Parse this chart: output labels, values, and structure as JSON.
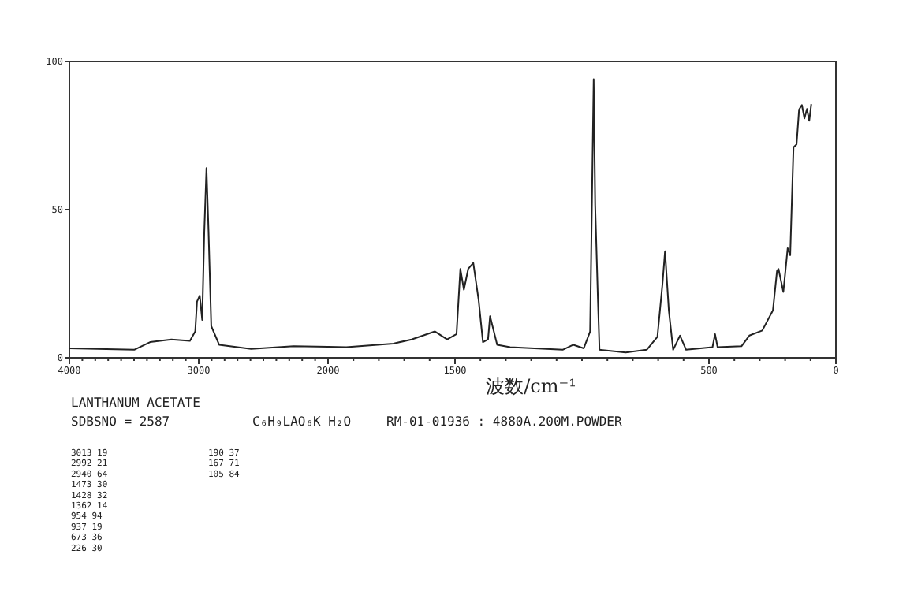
{
  "chart_data": [
    {
      "type": "line",
      "x": [
        4000,
        3499,
        3376,
        3211,
        3068,
        3027,
        3013,
        2992,
        2973,
        2957,
        2940,
        2924,
        2903,
        2842,
        2595,
        2267,
        2000
      ],
      "series": [
        {
          "color": "#222222",
          "values": [
            3.2,
            2.7,
            5.3,
            6.2,
            5.7,
            8.9,
            19,
            21,
            12.8,
            42.6,
            64,
            42.6,
            10.7,
            4.4,
            3,
            3.9,
            3.7
          ]
        }
      ],
      "xlim": [
        4000,
        2000
      ],
      "ylim": [
        0,
        100
      ],
      "yticks": [
        0,
        50,
        100
      ],
      "line_style": "solid",
      "xticks": [
        4000,
        {
          "value": 3900,
          "label": null
        },
        {
          "value": 3800,
          "label": null
        },
        {
          "value": 3700,
          "label": null
        },
        {
          "value": 3600,
          "label": null
        },
        {
          "value": 3500,
          "label": null
        },
        {
          "value": 3400,
          "label": null
        },
        {
          "value": 3300,
          "label": null
        },
        {
          "value": 3200,
          "label": null
        },
        {
          "value": 3100,
          "label": null
        },
        3000,
        {
          "value": 2900,
          "label": null
        },
        {
          "value": 2800,
          "label": null
        },
        {
          "value": 2700,
          "label": null
        },
        {
          "value": 2600,
          "label": null
        },
        {
          "value": 2500,
          "label": null
        },
        {
          "value": 2400,
          "label": null
        },
        {
          "value": 2300,
          "label": null
        },
        {
          "value": 2200,
          "label": null
        },
        {
          "value": 2100,
          "label": null
        }
      ],
      "annotations": [
        "LANTHANUM ACETATE",
        "SDBSNO = 2587",
        "C₆H₉LAO₆K H₂O",
        "RM-01-01936 : 4880A.200M.POWDER",
        "3013   19",
        "2992   21",
        "2940   64",
        "1473   30",
        "1428   32",
        "1362   14",
        " 954   94",
        " 937   19",
        " 673   36",
        " 226   30",
        "190   37",
        "167   71",
        "105   84"
      ]
    },
    {
      "type": "line",
      "xlabel": "波数/cm⁻¹",
      "x": [
        2000,
        1928,
        1743,
        1671,
        1579,
        1531,
        1494,
        1479,
        1465,
        1448,
        1428,
        1407,
        1390,
        1370,
        1362,
        1334,
        1283,
        1076,
        1034,
        993,
        968,
        954,
        948,
        937,
        931,
        828,
        745,
        703,
        683,
        673,
        658,
        641,
        614,
        590,
        486,
        476,
        466,
        372,
        341,
        290,
        248,
        232,
        226,
        207,
        190,
        180,
        167,
        155,
        145,
        134,
        124,
        114,
        105,
        97
      ],
      "series": [
        {
          "color": "#222222",
          "values": [
            3.7,
            3.6,
            4.8,
            6.2,
            8.9,
            6.2,
            8,
            30,
            23,
            30,
            32,
            19.5,
            5.3,
            6.2,
            14,
            4.4,
            3.6,
            2.7,
            4.4,
            3.2,
            8.9,
            94,
            51.5,
            19,
            2.7,
            1.8,
            2.7,
            7.1,
            25,
            36,
            16,
            2.7,
            7.5,
            2.7,
            3.6,
            8,
            3.6,
            3.9,
            7.5,
            9.2,
            16,
            29.3,
            30,
            22.2,
            37,
            34.6,
            71,
            72,
            83.8,
            85.3,
            80.8,
            84,
            80,
            85.6
          ]
        }
      ],
      "xlim": [
        2000,
        0
      ],
      "ylim": [
        0,
        100
      ],
      "tick_labels": "x",
      "line_style": "solid",
      "xticks": [
        2000,
        {
          "value": 1900,
          "label": null
        },
        {
          "value": 1800,
          "label": null
        },
        {
          "value": 1700,
          "label": null
        },
        {
          "value": 1600,
          "label": null
        },
        1500,
        {
          "value": 1400,
          "label": null
        },
        {
          "value": 1300,
          "label": null
        },
        {
          "value": 1200,
          "label": null
        },
        {
          "value": 1100,
          "label": null
        },
        {
          "value": 1000,
          "label": null
        },
        {
          "value": 900,
          "label": null
        },
        {
          "value": 800,
          "label": null
        },
        {
          "value": 700,
          "label": null
        },
        {
          "value": 600,
          "label": null
        },
        500,
        {
          "value": 400,
          "label": null
        },
        {
          "value": 300,
          "label": null
        },
        {
          "value": 200,
          "label": null
        },
        {
          "value": 100,
          "label": null
        },
        0
      ]
    }
  ]
}
